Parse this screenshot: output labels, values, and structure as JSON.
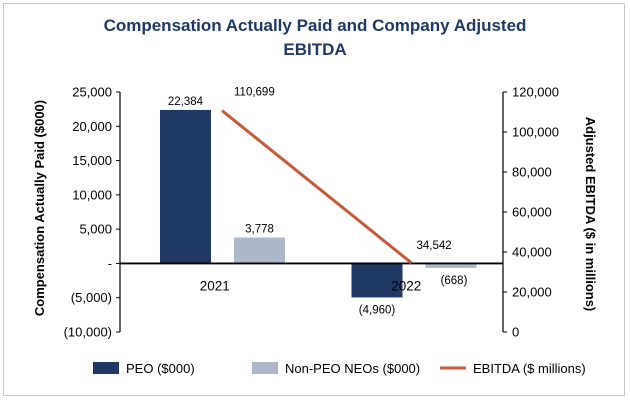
{
  "chart_data": {
    "type": "bar+line",
    "title_line1": "Compensation Actually Paid and Company Adjusted",
    "title_line2": "EBITDA",
    "categories": [
      "2021",
      "2022"
    ],
    "y_left": {
      "label": "Compensation Actually Paid ($000)",
      "range": [
        -10000,
        25000
      ],
      "ticks": [
        25000,
        20000,
        15000,
        10000,
        5000,
        0,
        -5000,
        -10000
      ],
      "tick_labels": [
        "25,000",
        "20,000",
        "15,000",
        "10,000",
        "5,000",
        "-",
        "(5,000)",
        "(10,000)"
      ]
    },
    "y_right": {
      "label": "Adjusted EBITDA ($ in millions)",
      "range": [
        0,
        120000
      ],
      "ticks": [
        120000,
        100000,
        80000,
        60000,
        40000,
        20000,
        0
      ],
      "tick_labels": [
        "120,000",
        "100,000",
        "80,000",
        "60,000",
        "40,000",
        "20,000",
        "0"
      ]
    },
    "series": [
      {
        "name": "PEO ($000)",
        "type": "bar",
        "axis": "left",
        "color": "#1f3864",
        "values": [
          22384,
          -4960
        ],
        "labels": [
          "22,384",
          "(4,960)"
        ]
      },
      {
        "name": "Non-PEO NEOs ($000)",
        "type": "bar",
        "axis": "left",
        "color": "#adb9ca",
        "values": [
          3778,
          -668
        ],
        "labels": [
          "3,778",
          "(668)"
        ]
      },
      {
        "name": "EBITDA ($ millions)",
        "type": "line",
        "axis": "right",
        "color": "#c55a3a",
        "values": [
          110699,
          34542
        ],
        "labels": [
          "110,699",
          "34,542"
        ]
      }
    ],
    "legend": [
      "PEO ($000)",
      "Non-PEO NEOs ($000)",
      "EBITDA ($ millions)"
    ]
  }
}
